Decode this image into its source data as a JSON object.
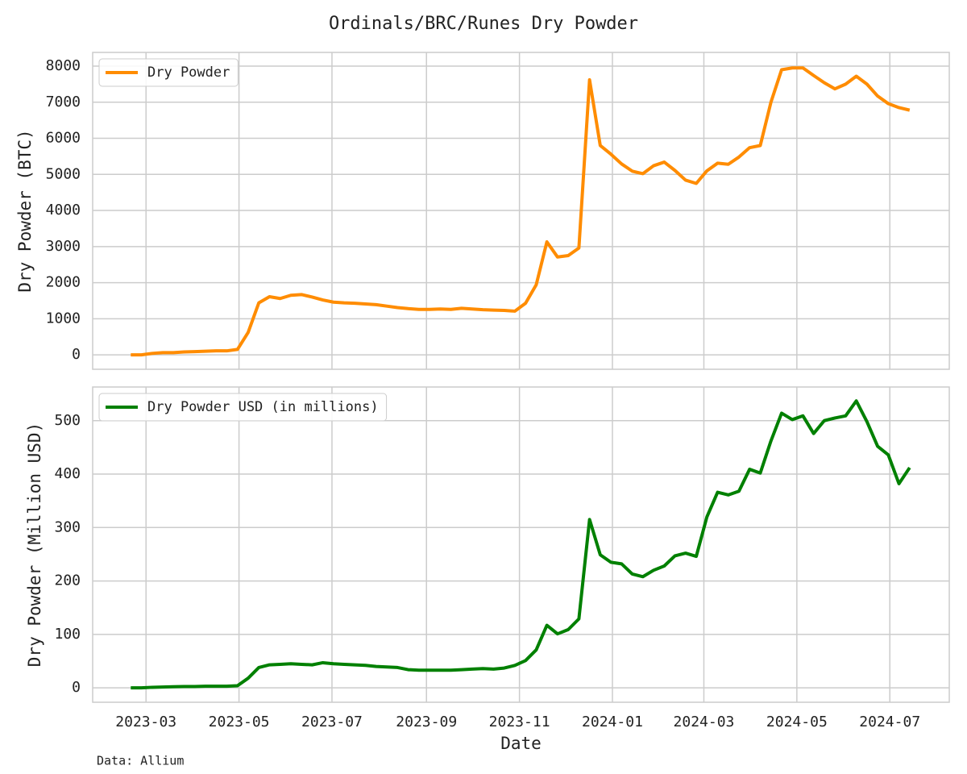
{
  "title": "Ordinals/BRC/Runes Dry Powder",
  "source": "Data: Allium",
  "chart_data": [
    {
      "type": "line",
      "ylabel": "Dry Powder (BTC)",
      "x": [
        -10,
        -3,
        4,
        11,
        18,
        25,
        32,
        39,
        46,
        53,
        60,
        67,
        74,
        81,
        88,
        95,
        102,
        109,
        116,
        123,
        130,
        137,
        144,
        151,
        158,
        165,
        172,
        179,
        186,
        193,
        200,
        207,
        214,
        221,
        228,
        235,
        242,
        249,
        256,
        263,
        270,
        277,
        284,
        291,
        298,
        305,
        312,
        319,
        326,
        333,
        340,
        347,
        354,
        361,
        368,
        375,
        382,
        389,
        396,
        403,
        410,
        417,
        424,
        431,
        438,
        445,
        452,
        459,
        466,
        473,
        480,
        487,
        494,
        501
      ],
      "series": [
        {
          "name": "Dry Powder",
          "color": "#ff8c00",
          "values": [
            0,
            0,
            40,
            60,
            60,
            80,
            90,
            100,
            110,
            110,
            150,
            620,
            1440,
            1610,
            1560,
            1650,
            1670,
            1600,
            1520,
            1460,
            1440,
            1430,
            1410,
            1390,
            1350,
            1310,
            1280,
            1260,
            1260,
            1270,
            1260,
            1290,
            1270,
            1250,
            1240,
            1230,
            1210,
            1430,
            1940,
            3130,
            2710,
            2750,
            2960,
            7620,
            5800,
            5560,
            5290,
            5090,
            5020,
            5240,
            5340,
            5110,
            4840,
            4750,
            5100,
            5310,
            5280,
            5480,
            5740,
            5800,
            7000,
            7900,
            7950,
            7950,
            7740,
            7540,
            7370,
            7500,
            7720,
            7500,
            7170,
            6960,
            6850,
            6780
          ]
        }
      ],
      "xlim": [
        -35,
        527
      ],
      "xticks": [
        0,
        61,
        122,
        184,
        245,
        306,
        366,
        427,
        488
      ],
      "ylim": [
        -400,
        8380
      ],
      "yticks": [
        0,
        1000,
        2000,
        3000,
        4000,
        5000,
        6000,
        7000,
        8000
      ],
      "grid": true,
      "legend": "upper left"
    },
    {
      "type": "line",
      "ylabel": "Dry Powder (Million USD)",
      "xlabel": "Date",
      "x": [
        -10,
        -3,
        4,
        11,
        18,
        25,
        32,
        39,
        46,
        53,
        60,
        67,
        74,
        81,
        88,
        95,
        102,
        109,
        116,
        123,
        130,
        137,
        144,
        151,
        158,
        165,
        172,
        179,
        186,
        193,
        200,
        207,
        214,
        221,
        228,
        235,
        242,
        249,
        256,
        263,
        270,
        277,
        284,
        291,
        298,
        305,
        312,
        319,
        326,
        333,
        340,
        347,
        354,
        361,
        368,
        375,
        382,
        389,
        396,
        403,
        410,
        417,
        424,
        431,
        438,
        445,
        452,
        459,
        466,
        473,
        480,
        487,
        494,
        501
      ],
      "series": [
        {
          "name": "Dry Powder USD (in millions)",
          "color": "#008000",
          "values": [
            0,
            0,
            1,
            1.5,
            2,
            2.5,
            2.5,
            3,
            3,
            3,
            4,
            18,
            38,
            43,
            44,
            45,
            44,
            43,
            47,
            45,
            44,
            43,
            42,
            40,
            39,
            38,
            34,
            33,
            33,
            33,
            33,
            34,
            35,
            36,
            35,
            37,
            42,
            51,
            71,
            117,
            101,
            109,
            129,
            315,
            249,
            235,
            232,
            213,
            208,
            220,
            228,
            247,
            252,
            246,
            320,
            366,
            361,
            368,
            409,
            402,
            462,
            514,
            502,
            509,
            476,
            500,
            505,
            509,
            537,
            498,
            452,
            436,
            382,
            412
          ]
        }
      ],
      "xlim": [
        -35,
        527
      ],
      "xticks": [
        {
          "value": 0,
          "label": "2023-03"
        },
        {
          "value": 61,
          "label": "2023-05"
        },
        {
          "value": 122,
          "label": "2023-07"
        },
        {
          "value": 184,
          "label": "2023-09"
        },
        {
          "value": 245,
          "label": "2023-11"
        },
        {
          "value": 306,
          "label": "2024-01"
        },
        {
          "value": 366,
          "label": "2024-03"
        },
        {
          "value": 427,
          "label": "2024-05"
        },
        {
          "value": 488,
          "label": "2024-07"
        }
      ],
      "ylim": [
        -27,
        563
      ],
      "yticks": [
        0,
        100,
        200,
        300,
        400,
        500
      ],
      "grid": true,
      "legend": "upper left"
    }
  ]
}
